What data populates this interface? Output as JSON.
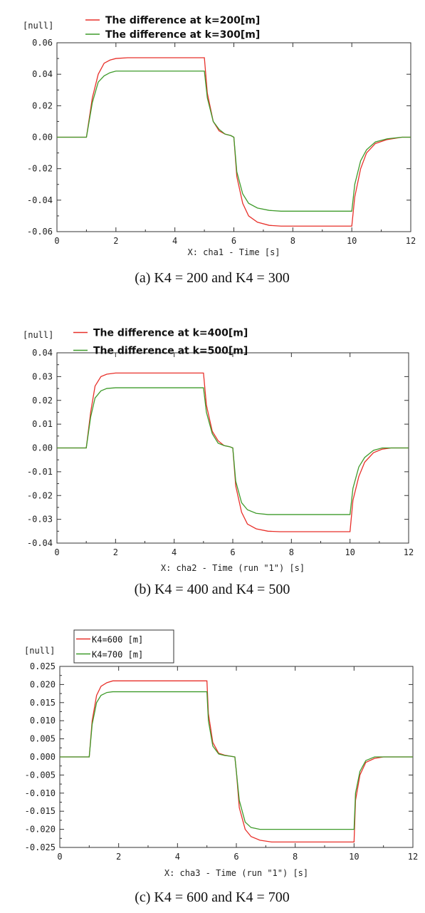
{
  "chart_data": [
    {
      "type": "line",
      "caption": "(a) K4 = 200 and K4 = 300",
      "ylabel": "[null]",
      "xlabel": "X: cha1 - Time [s]",
      "xlim": [
        0,
        12
      ],
      "ylim": [
        -0.06,
        0.06
      ],
      "xticks": [
        "0",
        "2",
        "4",
        "6",
        "8",
        "10",
        "12"
      ],
      "yticks": [
        "0.06",
        "0.04",
        "0.02",
        "0.00",
        "-0.02",
        "-0.04",
        "-0.06"
      ],
      "legend_style": "plain",
      "series": [
        {
          "name": "The difference at k=200[m]",
          "color": "#e8302a",
          "x": [
            0,
            1,
            1.2,
            1.4,
            1.6,
            1.8,
            2.0,
            2.4,
            3.0,
            4.0,
            5.0,
            5.1,
            5.3,
            5.5,
            5.7,
            5.9,
            6.0,
            6.1,
            6.3,
            6.5,
            6.8,
            7.2,
            7.6,
            8.5,
            10.0,
            10.1,
            10.3,
            10.5,
            10.8,
            11.2,
            11.7,
            12.0
          ],
          "y": [
            0,
            0,
            0.025,
            0.04,
            0.047,
            0.049,
            0.05,
            0.0505,
            0.0505,
            0.0505,
            0.0505,
            0.028,
            0.01,
            0.004,
            0.002,
            0.001,
            0.0,
            -0.025,
            -0.042,
            -0.05,
            -0.054,
            -0.056,
            -0.0565,
            -0.0565,
            -0.0565,
            -0.038,
            -0.02,
            -0.01,
            -0.004,
            -0.0015,
            0.0,
            0.0
          ]
        },
        {
          "name": "The difference at k=300[m]",
          "color": "#3f9b2b",
          "x": [
            0,
            1,
            1.2,
            1.4,
            1.6,
            1.8,
            2.0,
            2.4,
            3.0,
            4.0,
            5.0,
            5.1,
            5.3,
            5.5,
            5.7,
            5.9,
            6.0,
            6.1,
            6.3,
            6.5,
            6.8,
            7.2,
            7.6,
            8.5,
            10.0,
            10.1,
            10.3,
            10.5,
            10.8,
            11.2,
            11.7,
            12.0
          ],
          "y": [
            0,
            0,
            0.022,
            0.035,
            0.039,
            0.041,
            0.042,
            0.042,
            0.042,
            0.042,
            0.042,
            0.025,
            0.01,
            0.005,
            0.002,
            0.001,
            0.0,
            -0.022,
            -0.036,
            -0.042,
            -0.045,
            -0.0465,
            -0.047,
            -0.047,
            -0.047,
            -0.03,
            -0.015,
            -0.008,
            -0.003,
            -0.001,
            0.0,
            0.0
          ]
        }
      ]
    },
    {
      "type": "line",
      "caption": "(b) K4 = 400 and K4 = 500",
      "ylabel": "[null]",
      "xlabel": "X: cha2 - Time (run \"1\") [s]",
      "xlim": [
        0,
        12
      ],
      "ylim": [
        -0.04,
        0.04
      ],
      "xticks": [
        "0",
        "2",
        "4",
        "6",
        "8",
        "10",
        "12"
      ],
      "yticks": [
        "0.04",
        "0.03",
        "0.02",
        "0.01",
        "0.00",
        "-0.01",
        "-0.02",
        "-0.03",
        "-0.04"
      ],
      "legend_style": "plain",
      "series": [
        {
          "name": "The difference at k=400[m]",
          "color": "#e8302a",
          "x": [
            0,
            1,
            1.15,
            1.3,
            1.5,
            1.7,
            2.0,
            2.5,
            4.0,
            5.0,
            5.1,
            5.3,
            5.5,
            5.7,
            5.9,
            6.0,
            6.1,
            6.3,
            6.5,
            6.8,
            7.2,
            7.6,
            8.5,
            10.0,
            10.1,
            10.3,
            10.5,
            10.8,
            11.1,
            11.4,
            12.0
          ],
          "y": [
            0,
            0,
            0.015,
            0.026,
            0.03,
            0.031,
            0.0315,
            0.0315,
            0.0315,
            0.0315,
            0.018,
            0.007,
            0.003,
            0.001,
            0.0005,
            0.0,
            -0.016,
            -0.027,
            -0.032,
            -0.034,
            -0.035,
            -0.0352,
            -0.0352,
            -0.0352,
            -0.022,
            -0.012,
            -0.006,
            -0.002,
            -0.0005,
            0.0,
            0.0
          ]
        },
        {
          "name": "The difference at k=500[m]",
          "color": "#3f9b2b",
          "x": [
            0,
            1,
            1.15,
            1.3,
            1.5,
            1.7,
            2.0,
            2.5,
            4.0,
            5.0,
            5.1,
            5.3,
            5.5,
            5.7,
            5.9,
            6.0,
            6.1,
            6.3,
            6.5,
            6.8,
            7.2,
            7.6,
            8.5,
            10.0,
            10.1,
            10.3,
            10.5,
            10.8,
            11.1,
            11.4,
            12.0
          ],
          "y": [
            0,
            0,
            0.013,
            0.021,
            0.024,
            0.025,
            0.0253,
            0.0253,
            0.0253,
            0.0253,
            0.015,
            0.006,
            0.002,
            0.001,
            0.0005,
            0.0,
            -0.014,
            -0.023,
            -0.026,
            -0.0275,
            -0.028,
            -0.028,
            -0.028,
            -0.028,
            -0.017,
            -0.008,
            -0.004,
            -0.001,
            0.0,
            0.0,
            0.0
          ]
        }
      ]
    },
    {
      "type": "line",
      "caption": "(c) K4 = 600 and K4 = 700",
      "ylabel": "[null]",
      "xlabel": "X: cha3 - Time (run \"1\") [s]",
      "xlim": [
        0,
        12
      ],
      "ylim": [
        -0.025,
        0.025
      ],
      "xticks": [
        "0",
        "2",
        "4",
        "6",
        "8",
        "10",
        "12"
      ],
      "yticks": [
        "0.025",
        "0.020",
        "0.015",
        "0.010",
        "0.005",
        "0.000",
        "-0.005",
        "-0.010",
        "-0.015",
        "-0.020",
        "-0.025"
      ],
      "legend_style": "boxed",
      "series": [
        {
          "name": "K4=600   [m]",
          "color": "#e8302a",
          "x": [
            0,
            1,
            1.1,
            1.25,
            1.4,
            1.6,
            1.8,
            2.2,
            4.0,
            5.0,
            5.05,
            5.2,
            5.4,
            5.6,
            5.8,
            5.95,
            6.0,
            6.1,
            6.3,
            6.5,
            6.8,
            7.2,
            8.5,
            10.0,
            10.05,
            10.2,
            10.4,
            10.7,
            11.0,
            12.0
          ],
          "y": [
            0,
            0,
            0.01,
            0.017,
            0.0195,
            0.0205,
            0.021,
            0.021,
            0.021,
            0.021,
            0.012,
            0.004,
            0.001,
            0.0005,
            0.0002,
            0.0,
            -0.004,
            -0.014,
            -0.02,
            -0.022,
            -0.023,
            -0.0235,
            -0.0235,
            -0.0235,
            -0.012,
            -0.005,
            -0.0015,
            -0.0004,
            0.0,
            0.0
          ]
        },
        {
          "name": "K4=700   [m]",
          "color": "#3f9b2b",
          "x": [
            0,
            1,
            1.1,
            1.25,
            1.4,
            1.6,
            1.8,
            2.2,
            4.0,
            5.0,
            5.05,
            5.2,
            5.4,
            5.6,
            5.8,
            5.95,
            6.0,
            6.1,
            6.3,
            6.5,
            6.8,
            7.2,
            8.5,
            10.0,
            10.05,
            10.2,
            10.4,
            10.7,
            11.0,
            12.0
          ],
          "y": [
            0,
            0,
            0.009,
            0.015,
            0.017,
            0.0178,
            0.018,
            0.018,
            0.018,
            0.018,
            0.01,
            0.003,
            0.0008,
            0.0004,
            0.0002,
            0.0,
            -0.004,
            -0.012,
            -0.018,
            -0.0195,
            -0.02,
            -0.02,
            -0.02,
            -0.02,
            -0.01,
            -0.004,
            -0.001,
            0.0,
            0.0,
            0.0
          ]
        }
      ]
    }
  ]
}
